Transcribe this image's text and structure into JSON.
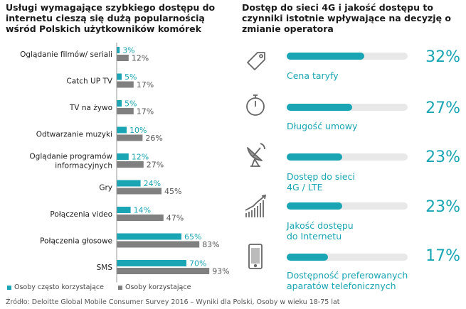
{
  "left_title": "Usługi wymagające szybkiego dostępu do internetu cieszą się dużą popularnością wśród Polskich użytkowników komórek",
  "right_title": "Dostęp do sieci 4G i jakość dostępu to czynniki istotnie wpływające na decyzję o zmianie operatora",
  "colors": {
    "teal": "#19a5b3",
    "gray": "#808080",
    "track": "#e8e8e8"
  },
  "chart_data": [
    {
      "type": "bar",
      "orientation": "horizontal",
      "title": "Usługi wymagające szybkiego dostępu do internetu cieszą się dużą popularnością wśród Polskich użytkowników komórek",
      "categories": [
        [
          "Oglądanie filmów/ seriali"
        ],
        [
          "Catch UP TV"
        ],
        [
          "TV na żywo"
        ],
        [
          "Odtwarzanie muzyki"
        ],
        [
          "Oglądanie programów",
          "informacyjnych"
        ],
        [
          "Gry"
        ],
        [
          "Połączenia video"
        ],
        [
          "Połączenia głosowe"
        ],
        [
          "SMS"
        ]
      ],
      "series": [
        {
          "name": "Osoby często korzystające",
          "values": [
            3,
            5,
            5,
            10,
            12,
            24,
            14,
            65,
            70
          ],
          "labels": [
            "3%",
            "5%",
            "5%",
            "10%",
            "12%",
            "24%",
            "14%",
            "65%",
            "70%"
          ]
        },
        {
          "name": "Osoby korzystające",
          "values": [
            12,
            17,
            17,
            26,
            27,
            45,
            47,
            83,
            93
          ],
          "labels": [
            "12%",
            "17%",
            "17%",
            "26%",
            "27%",
            "45%",
            "47%",
            "83%",
            "93%"
          ]
        }
      ],
      "xlim": [
        0,
        100
      ]
    },
    {
      "type": "bar",
      "orientation": "horizontal",
      "title": "Dostęp do sieci 4G i jakość dostępu to czynniki istotnie wpływające na decyzję o zmianie operatora",
      "factors": [
        {
          "label": [
            "Cena taryfy"
          ],
          "value": 32,
          "pct": "32%",
          "icon": "price-tag-icon"
        },
        {
          "label": [
            "Długość umowy"
          ],
          "value": 27,
          "pct": "27%",
          "icon": "stopwatch-icon"
        },
        {
          "label": [
            "Dostęp do sieci",
            "4G / LTE"
          ],
          "value": 23,
          "pct": "23%",
          "icon": "satellite-dish-icon"
        },
        {
          "label": [
            "Jakość dostępu",
            "do Internetu"
          ],
          "value": 23,
          "pct": "23%",
          "icon": "rising-chart-icon"
        },
        {
          "label": [
            "Dostępność preferowanych",
            "aparatów telefonicznych"
          ],
          "value": 17,
          "pct": "17%",
          "icon": "smartphone-icon"
        }
      ],
      "xlim": [
        0,
        50
      ]
    }
  ],
  "legend": {
    "frequent": "Osoby często korzystające",
    "users": "Osoby korzystające"
  },
  "source": "Źródło: Deloitte Global Mobile Consumer Survey 2016 – Wyniki dla Polski, Osoby w wieku 18-75 lat"
}
